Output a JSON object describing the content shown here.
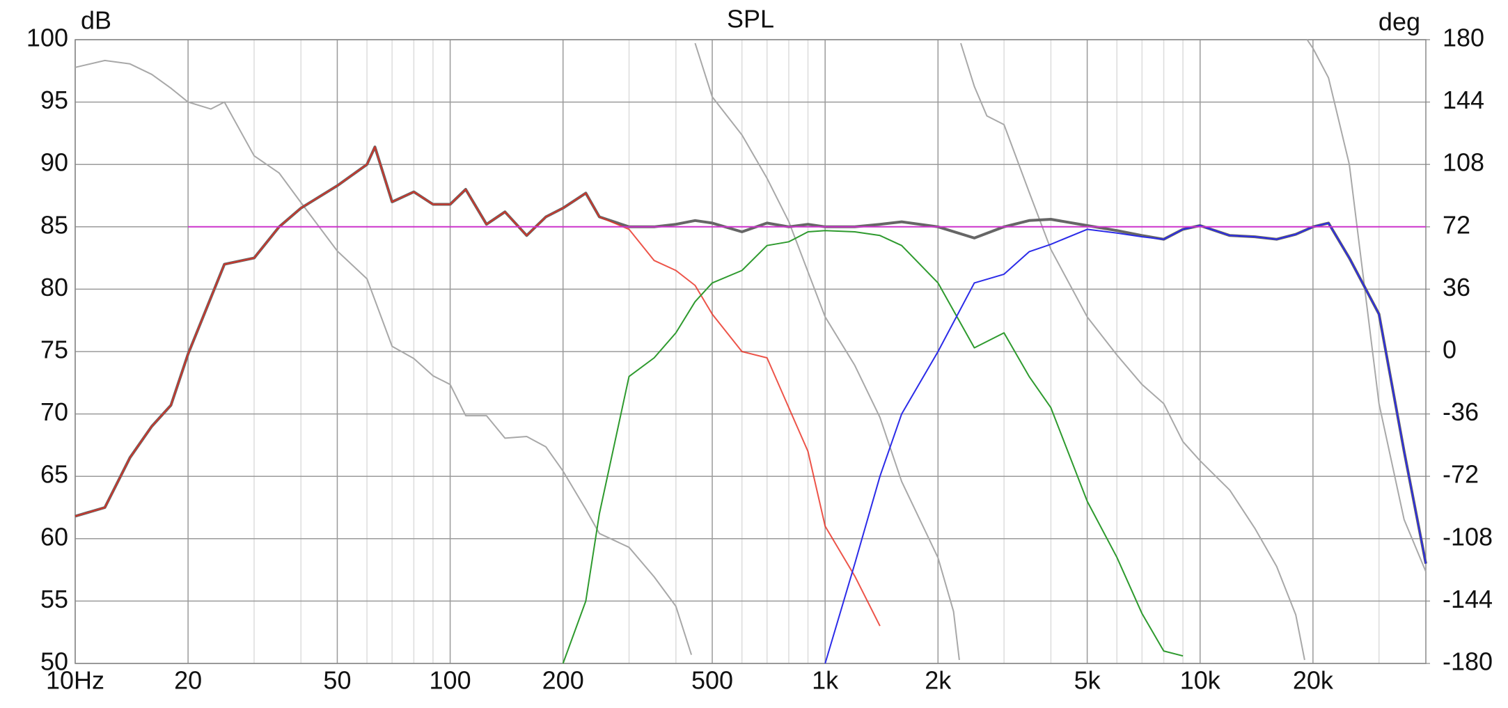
{
  "chart_data": {
    "type": "line",
    "title": "SPL",
    "ylabel": "dB",
    "y2label": "deg",
    "xscale": "log",
    "grid": true,
    "xlim": [
      10,
      40000
    ],
    "xticks": [
      {
        "value": 10,
        "label": "10Hz"
      },
      20,
      50,
      100,
      200,
      500,
      {
        "value": 1000,
        "label": "1k"
      },
      {
        "value": 2000,
        "label": "2k"
      },
      {
        "value": 5000,
        "label": "5k"
      },
      {
        "value": 10000,
        "label": "10k"
      },
      {
        "value": 20000,
        "label": "20k"
      }
    ],
    "x_minor_grid": [
      30,
      40,
      60,
      70,
      80,
      90,
      300,
      400,
      600,
      700,
      800,
      900,
      3000,
      4000,
      6000,
      7000,
      8000,
      9000,
      30000
    ],
    "ylim": [
      50,
      100
    ],
    "yticks": [
      50,
      55,
      60,
      65,
      70,
      75,
      80,
      85,
      90,
      95,
      100
    ],
    "y2lim": [
      -180,
      180
    ],
    "y2ticks": [
      -180,
      -144,
      -108,
      -72,
      -36,
      0,
      36,
      72,
      108,
      144,
      180
    ],
    "x": [
      10,
      12,
      14,
      16,
      18,
      20,
      25,
      30,
      35,
      40,
      50,
      60,
      63,
      70,
      80,
      90,
      100,
      110,
      125,
      140,
      160,
      180,
      200,
      230,
      250,
      300,
      350,
      400,
      450,
      500,
      600,
      700,
      800,
      900,
      1000,
      1200,
      1400,
      1600,
      2000,
      2500,
      3000,
      3500,
      4000,
      5000,
      6000,
      7000,
      8000,
      9000,
      10000,
      12000,
      14000,
      16000,
      18000,
      20000,
      22000,
      25000,
      30000,
      35000,
      40000
    ],
    "series": [
      {
        "color": "#666666",
        "values": [
          61.8,
          62.5,
          66.5,
          69,
          70.7,
          74.8,
          82,
          82.5,
          85,
          86.5,
          88.3,
          90,
          91.4,
          87,
          87.8,
          86.8,
          86.8,
          88,
          85.2,
          86.2,
          84.3,
          85.8,
          86.5,
          87.7,
          85.8,
          85,
          85,
          85.2,
          85.5,
          85.3,
          84.6,
          85.3,
          85,
          85.2,
          85,
          85,
          85.2,
          85.4,
          85,
          84.1,
          85,
          85.5,
          85.6,
          85.1,
          84.7,
          84.3,
          84,
          84.8,
          85.1,
          84.3,
          84.2,
          84,
          84.4,
          85,
          85.3,
          82.5,
          78,
          67,
          58
        ]
      },
      {
        "color": "#e8291c",
        "values": [
          61.8,
          62.5,
          66.5,
          69,
          70.7,
          74.8,
          82,
          82.5,
          85,
          86.5,
          88.3,
          90,
          91.4,
          87,
          87.8,
          86.8,
          86.8,
          88,
          85.2,
          86.2,
          84.3,
          85.8,
          86.5,
          87.7,
          85.8,
          84.8,
          82.3,
          81.5,
          80.3,
          78,
          75,
          74.5,
          70.5,
          67,
          61,
          57,
          53,
          null,
          null,
          null,
          null,
          null,
          null,
          null,
          null,
          null,
          null,
          null,
          null,
          null,
          null,
          null,
          null,
          null,
          null,
          null,
          null,
          null,
          null
        ]
      },
      {
        "color": "#2e9a2e",
        "values": [
          null,
          null,
          null,
          null,
          null,
          null,
          null,
          null,
          null,
          null,
          null,
          null,
          null,
          null,
          null,
          null,
          null,
          null,
          null,
          null,
          null,
          null,
          50,
          55,
          62,
          73,
          74.5,
          76.5,
          79,
          80.5,
          81.5,
          83.5,
          83.8,
          84.6,
          84.7,
          84.6,
          84.3,
          83.5,
          80.5,
          75.3,
          76.5,
          73,
          70.5,
          63,
          58.5,
          54,
          51,
          50.6,
          null,
          null,
          null,
          null,
          null,
          null,
          null,
          null,
          null,
          null,
          null
        ]
      },
      {
        "color": "#2b2be8",
        "values": [
          null,
          null,
          null,
          null,
          null,
          null,
          null,
          null,
          null,
          null,
          null,
          null,
          null,
          null,
          null,
          null,
          null,
          null,
          null,
          null,
          null,
          null,
          null,
          null,
          null,
          null,
          null,
          null,
          null,
          null,
          null,
          null,
          null,
          null,
          50,
          58,
          65,
          70,
          75,
          80.5,
          81.2,
          83,
          83.6,
          84.8,
          84.5,
          84.2,
          84,
          84.8,
          85.1,
          84.3,
          84.2,
          84,
          84.4,
          85,
          85.3,
          82.5,
          78,
          67,
          58
        ]
      },
      {
        "color": "#cc33cc",
        "values": [
          null,
          null,
          null,
          null,
          null,
          85,
          85,
          85,
          85,
          85,
          85,
          85,
          85,
          85,
          85,
          85,
          85,
          85,
          85,
          85,
          85,
          85,
          85,
          85,
          85,
          85,
          85,
          85,
          85,
          85,
          85,
          85,
          85,
          85,
          85,
          85,
          85,
          85,
          85,
          85,
          85,
          85,
          85,
          85,
          85,
          85,
          85,
          85,
          85,
          85,
          85,
          85,
          85,
          85,
          85,
          85,
          85,
          85,
          85
        ]
      },
      {
        "color": "#a8a8a8",
        "axis": "y2",
        "x": [
          10,
          12,
          14,
          16,
          18,
          20,
          23,
          25,
          30,
          35,
          40,
          50,
          60,
          70,
          80,
          90,
          100,
          110,
          125,
          140,
          160,
          180,
          200,
          230,
          250,
          300,
          350,
          400,
          440,
          445,
          450,
          500,
          600,
          700,
          800,
          1000,
          1200,
          1400,
          1600,
          2000,
          2200,
          2280,
          2290,
          2300,
          2500,
          2700,
          3000,
          3500,
          4000,
          5000,
          6000,
          7000,
          8000,
          9000,
          10000,
          12000,
          14000,
          16000,
          18000,
          19000,
          19150,
          19300,
          20000,
          22000,
          25000,
          30000,
          35000,
          40000
        ],
        "values": [
          164,
          168,
          166,
          160,
          152,
          144,
          140,
          144,
          113,
          103,
          86,
          58,
          42,
          3,
          -4,
          -14,
          -19,
          -37,
          -37,
          -50,
          -49,
          -55,
          -69,
          -91,
          -105,
          -113,
          -130,
          -147,
          -175,
          null,
          178,
          147,
          125,
          100,
          75,
          20,
          -8,
          -38,
          -75,
          -119,
          -150,
          -178,
          null,
          178,
          153,
          136,
          131,
          92,
          59,
          20,
          -2,
          -19,
          -30,
          -52,
          -63,
          -80,
          -102,
          -124,
          -152,
          -178,
          null,
          180,
          175,
          158,
          108,
          -30,
          -97,
          -127
        ]
      }
    ]
  }
}
